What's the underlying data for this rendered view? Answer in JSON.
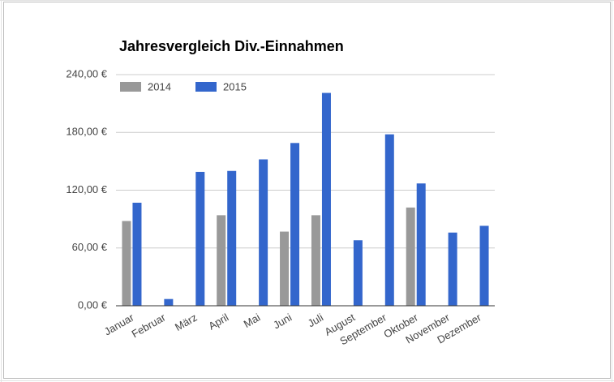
{
  "chart_data": {
    "type": "bar",
    "title": "Jahresvergleich Div.-Einnahmen",
    "categories": [
      "Januar",
      "Februar",
      "März",
      "April",
      "Mai",
      "Juni",
      "Juli",
      "August",
      "September",
      "Oktober",
      "November",
      "Dezember"
    ],
    "series": [
      {
        "name": "2014",
        "color": "#999999",
        "values": [
          88,
          0,
          0,
          94,
          0,
          77,
          94,
          0,
          0,
          102,
          0,
          0
        ]
      },
      {
        "name": "2015",
        "color": "#3366cc",
        "values": [
          107,
          7,
          139,
          140,
          152,
          169,
          221,
          68,
          178,
          127,
          76,
          83
        ]
      }
    ],
    "ylim": [
      0,
      240
    ],
    "yticks": [
      {
        "value": 0,
        "label": "0,00 €"
      },
      {
        "value": 60,
        "label": "60,00 €"
      },
      {
        "value": 120,
        "label": "120,00 €"
      },
      {
        "value": 180,
        "label": "180,00 €"
      },
      {
        "value": 240,
        "label": "240,00 €"
      }
    ],
    "grid": true,
    "legend": "top-left"
  }
}
